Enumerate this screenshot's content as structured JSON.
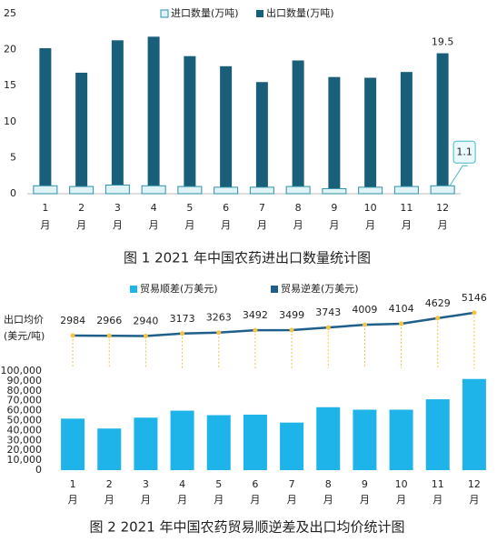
{
  "chart_data": [
    {
      "type": "bar",
      "title": "图 1 2021 年中国农药进出口数量统计图",
      "categories": [
        "1月",
        "2月",
        "3月",
        "4月",
        "5月",
        "6月",
        "7月",
        "8月",
        "9月",
        "10月",
        "11月",
        "12月"
      ],
      "series": [
        {
          "name": "进口数量(万吨)",
          "color": "#dff3f7",
          "stroke": "#2e8fa8",
          "values": [
            1.1,
            1.0,
            1.2,
            1.1,
            1.0,
            0.9,
            0.9,
            1.0,
            0.7,
            0.9,
            1.0,
            1.1
          ],
          "value_labels": [
            null,
            null,
            null,
            null,
            null,
            null,
            null,
            null,
            null,
            null,
            null,
            "1.1"
          ]
        },
        {
          "name": "出口数量(万吨)",
          "color": "#1a5f7a",
          "values": [
            20.2,
            16.8,
            21.3,
            21.8,
            19.1,
            17.7,
            15.5,
            18.5,
            16.2,
            16.1,
            16.9,
            19.5
          ],
          "value_labels": [
            null,
            null,
            null,
            null,
            null,
            null,
            null,
            null,
            null,
            null,
            null,
            "19.5"
          ]
        }
      ],
      "ylim": [
        0,
        25
      ],
      "yticks": [
        0,
        5,
        10,
        15,
        20,
        25
      ]
    },
    {
      "type": "combo",
      "title": "图 2 2021 年中国农药贸易顺逆差及出口均价统计图",
      "line_label": [
        "出口均价",
        "(美元/吨)"
      ],
      "categories": [
        "1月",
        "2月",
        "3月",
        "4月",
        "5月",
        "6月",
        "7月",
        "8月",
        "9月",
        "10月",
        "11月",
        "12月"
      ],
      "series": [
        {
          "name": "贸易顺差(万美元)",
          "color": "#1eb4ea",
          "values": [
            52000,
            42000,
            53000,
            60000,
            55500,
            56000,
            48000,
            63500,
            61000,
            61000,
            71500,
            92000
          ]
        },
        {
          "name": "贸易逆差(万美元)",
          "color": "#1f5f8b",
          "axis": "y2",
          "values": [
            2984,
            2966,
            2940,
            3173,
            3263,
            3492,
            3499,
            3743,
            4009,
            4104,
            4629,
            5146
          ]
        }
      ],
      "ylim": [
        0,
        100000
      ],
      "yticks": [
        0,
        {
          "value": 10000,
          "label": "10,000"
        },
        {
          "value": 20000,
          "label": "20,000"
        },
        {
          "value": 30000,
          "label": "30,000"
        },
        {
          "value": 40000,
          "label": "40,000"
        },
        {
          "value": 50000,
          "label": "50,000"
        },
        {
          "value": 60000,
          "label": "60,000"
        },
        {
          "value": 70000,
          "label": "70,000"
        },
        {
          "value": 80000,
          "label": "80,000"
        },
        {
          "value": 90000,
          "label": "90,000"
        },
        {
          "value": 100000,
          "label": "100,000"
        }
      ],
      "y2lim": [
        1000,
        6000
      ]
    }
  ]
}
